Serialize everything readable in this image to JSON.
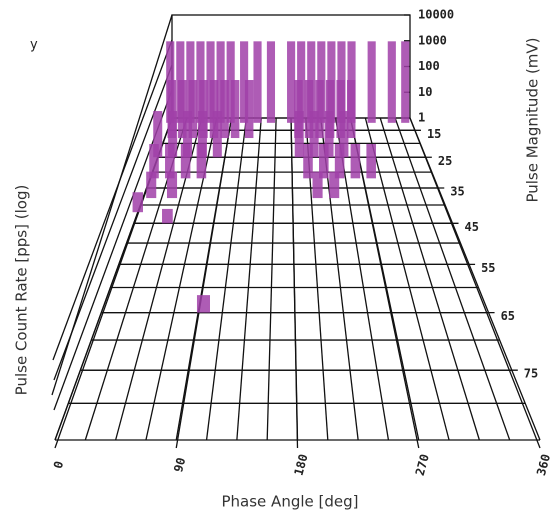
{
  "chart_data": {
    "type": "bar3d",
    "legend_fragment": "y",
    "x_label": "Phase Angle [deg]",
    "y_label": "Pulse Magnitude (mV)",
    "z_label": "Pulse Count Rate [pps] (log)",
    "xlim": [
      0,
      360
    ],
    "xticks": [
      0,
      90,
      180,
      270,
      360
    ],
    "ylim": [
      10,
      85
    ],
    "yticks": [
      15,
      25,
      35,
      45,
      55,
      65,
      75
    ],
    "zlim": [
      1,
      10000
    ],
    "zticks": [
      1,
      10,
      100,
      1000,
      10000
    ],
    "zscale": "log",
    "color": "#a040a8",
    "phase": [
      0,
      15,
      30,
      45,
      60,
      75,
      90,
      110,
      130,
      150,
      180,
      195,
      210,
      225,
      240,
      255,
      270,
      300,
      330,
      350,
      10,
      25,
      40,
      55,
      70,
      85,
      100,
      120,
      190,
      205,
      220,
      235,
      250,
      265,
      0,
      20,
      40,
      60,
      80,
      190,
      210,
      230,
      250,
      5,
      25,
      45,
      65,
      200,
      220,
      240,
      260,
      280,
      10,
      35,
      210,
      230,
      0,
      38,
      95
    ],
    "magnitude": [
      12,
      12,
      12,
      12,
      12,
      12,
      12,
      12,
      12,
      12,
      12,
      12,
      12,
      12,
      12,
      12,
      12,
      12,
      12,
      12,
      18,
      18,
      18,
      18,
      18,
      18,
      18,
      18,
      18,
      18,
      18,
      18,
      18,
      18,
      25,
      25,
      25,
      25,
      25,
      25,
      25,
      25,
      25,
      32,
      32,
      32,
      32,
      32,
      32,
      32,
      32,
      32,
      38,
      38,
      38,
      38,
      42,
      45,
      65
    ],
    "rate": [
      1000,
      1000,
      1000,
      1000,
      1000,
      1000,
      1000,
      1000,
      1000,
      1000,
      1000,
      1000,
      1000,
      1000,
      1000,
      1000,
      1000,
      1000,
      1000,
      1000,
      100,
      100,
      100,
      100,
      100,
      100,
      100,
      100,
      100,
      100,
      100,
      100,
      100,
      100,
      30,
      30,
      30,
      30,
      30,
      30,
      30,
      30,
      30,
      10,
      10,
      10,
      10,
      10,
      10,
      10,
      10,
      10,
      5,
      5,
      5,
      5,
      3,
      2,
      2
    ]
  }
}
